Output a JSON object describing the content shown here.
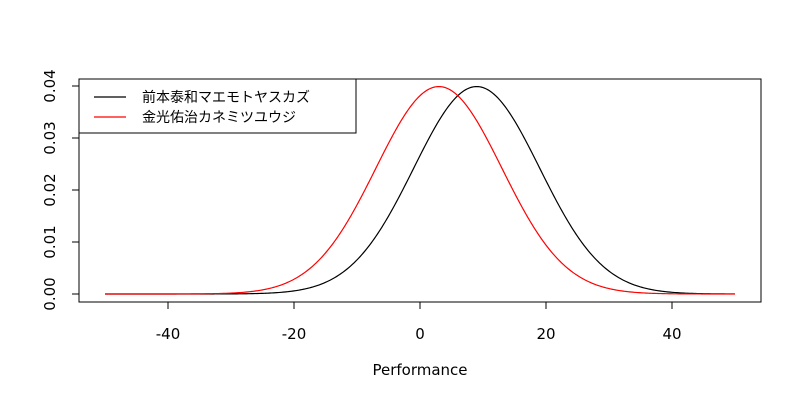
{
  "chart_data": {
    "type": "line",
    "title": "",
    "xlabel": "Performance",
    "ylabel": "",
    "xlim": [
      -50,
      50
    ],
    "ylim": [
      0,
      0.04
    ],
    "x_ticks": [
      -40,
      -20,
      0,
      20,
      40
    ],
    "x_tick_labels": [
      "-40",
      "-20",
      "0",
      "20",
      "40"
    ],
    "y_ticks": [
      0,
      0.01,
      0.02,
      0.03,
      0.04
    ],
    "y_tick_labels": [
      "0.00",
      "0.01",
      "0.02",
      "0.03",
      "0.04"
    ],
    "grid": false,
    "legend_position": "top-left",
    "series": [
      {
        "name": "前本泰和マエモトヤスカズ",
        "color": "#000000",
        "distribution": "normal",
        "mean": 9,
        "sd": 10,
        "x_range": [
          -50,
          50
        ]
      },
      {
        "name": "金光佑治カネミツユウジ",
        "color": "#ff0000",
        "distribution": "normal",
        "mean": 3,
        "sd": 10,
        "x_range": [
          -50,
          50
        ]
      }
    ]
  }
}
